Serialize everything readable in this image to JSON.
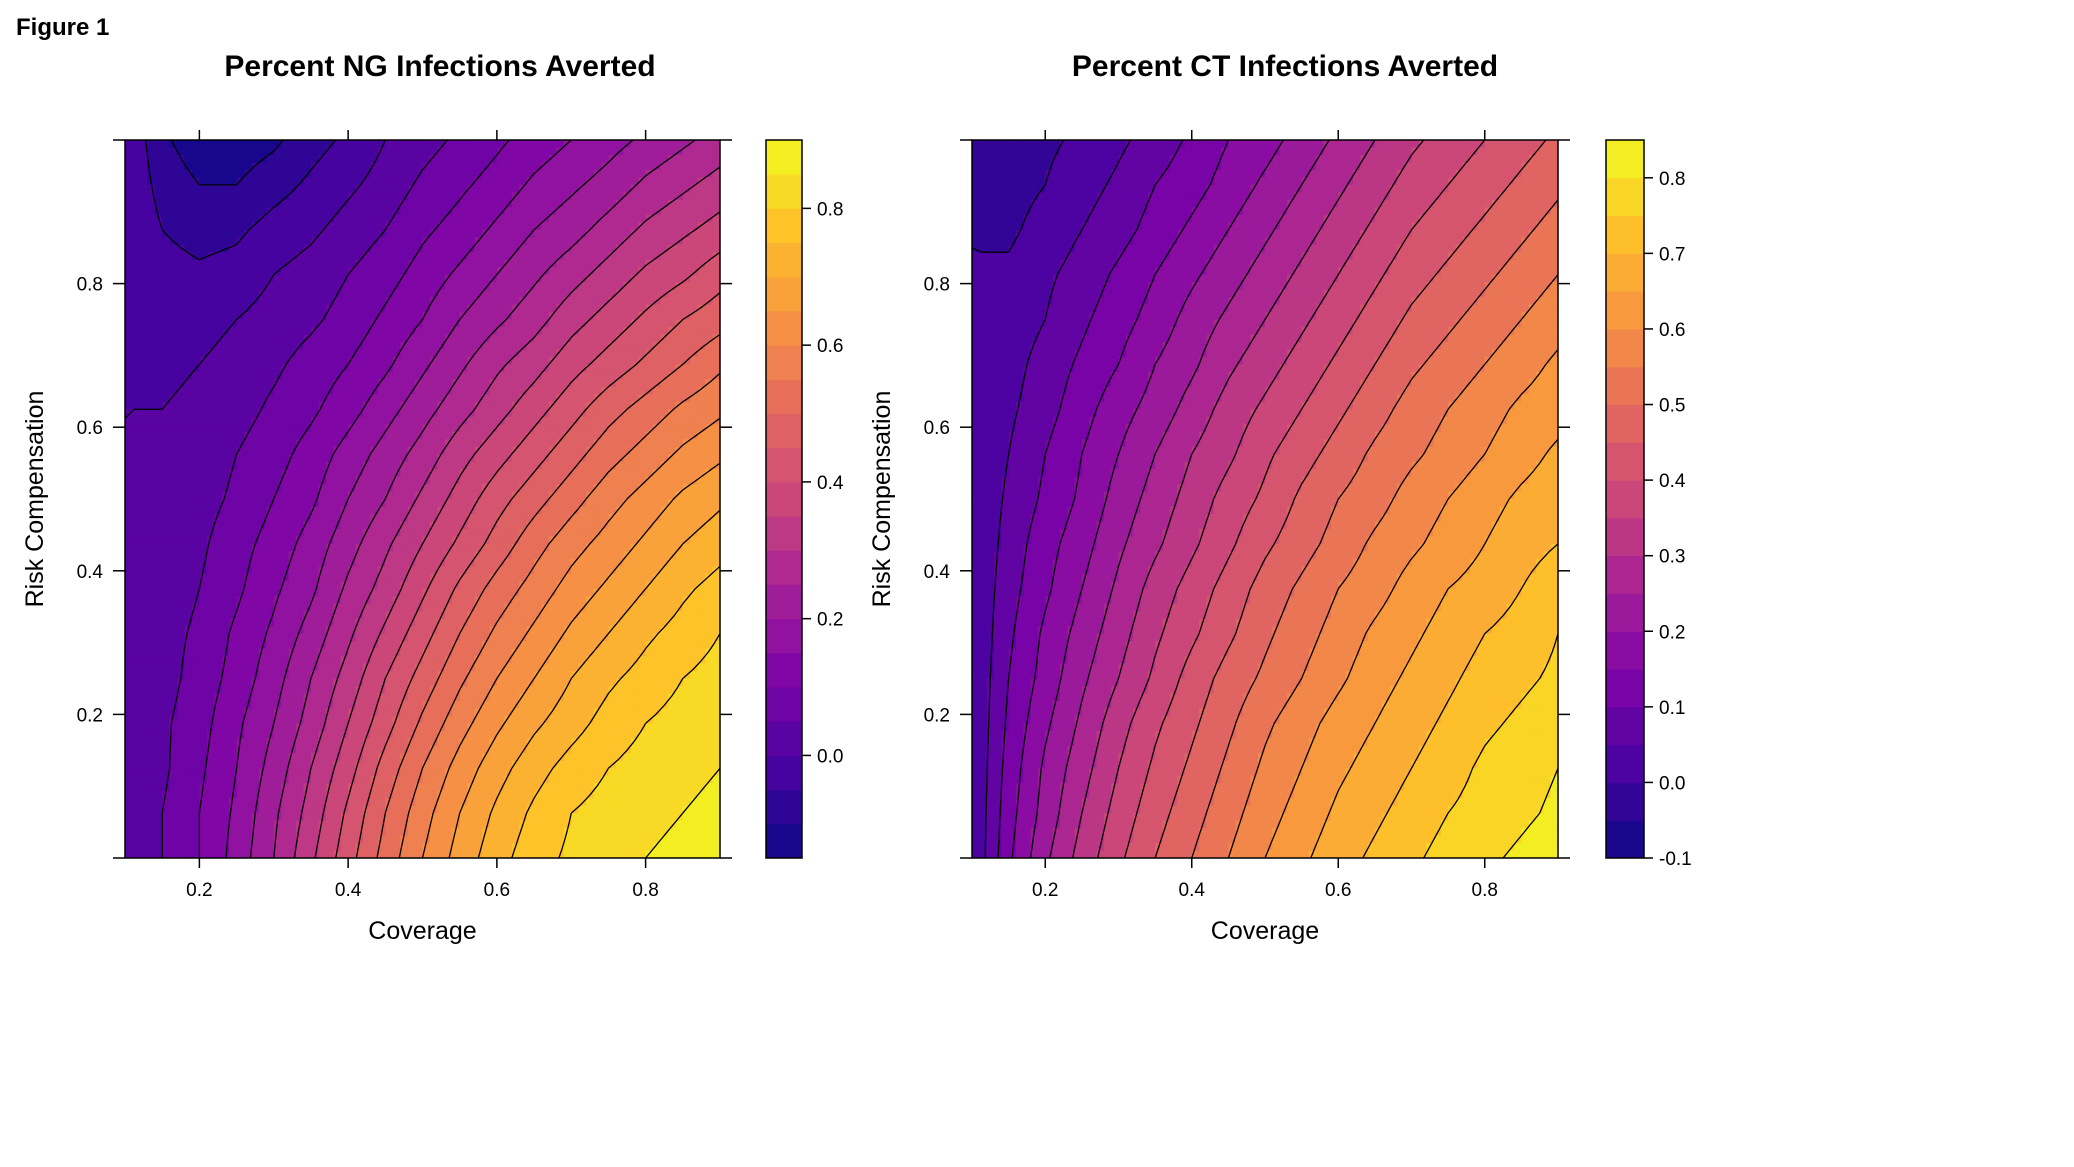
{
  "figure_label": "Figure 1",
  "chart_data": [
    {
      "type": "heatmap",
      "subtype": "filled-contour",
      "title": "Percent NG Infections Averted",
      "xlabel": "Coverage",
      "ylabel": "Risk Compensation",
      "xlim": [
        0.1,
        0.9
      ],
      "ylim": [
        0.0,
        1.0
      ],
      "x_ticks": [
        0.2,
        0.4,
        0.6,
        0.8
      ],
      "y_ticks": [
        0.2,
        0.4,
        0.6,
        0.8
      ],
      "x_tick_labels": [
        "0.2",
        "0.4",
        "0.6",
        "0.8"
      ],
      "y_tick_labels": [
        "0.2",
        "0.4",
        "0.6",
        "0.8"
      ],
      "colorbar": {
        "range": [
          -0.15,
          0.9
        ],
        "ticks": [
          0.0,
          0.2,
          0.4,
          0.6,
          0.8
        ],
        "tick_labels": [
          "0.0",
          "0.2",
          "0.4",
          "0.6",
          "0.8"
        ],
        "step": 0.05
      },
      "colormap": "plasma",
      "grid": [
        [
          0.0,
          0.05,
          0.1,
          0.17,
          0.25,
          0.34,
          0.43,
          0.52,
          0.6,
          0.67,
          0.73,
          0.78,
          0.81,
          0.83,
          0.85,
          0.86,
          0.87
        ],
        [
          0.0,
          0.05,
          0.1,
          0.16,
          0.24,
          0.32,
          0.41,
          0.5,
          0.58,
          0.65,
          0.71,
          0.76,
          0.8,
          0.82,
          0.84,
          0.85,
          0.86
        ],
        [
          0.0,
          0.04,
          0.09,
          0.15,
          0.22,
          0.3,
          0.38,
          0.47,
          0.55,
          0.62,
          0.68,
          0.73,
          0.77,
          0.8,
          0.82,
          0.84,
          0.85
        ],
        [
          0.0,
          0.04,
          0.08,
          0.14,
          0.2,
          0.27,
          0.35,
          0.43,
          0.51,
          0.58,
          0.64,
          0.69,
          0.73,
          0.77,
          0.8,
          0.82,
          0.84
        ],
        [
          0.0,
          0.03,
          0.07,
          0.12,
          0.18,
          0.25,
          0.32,
          0.4,
          0.47,
          0.54,
          0.6,
          0.65,
          0.7,
          0.74,
          0.77,
          0.8,
          0.82
        ],
        [
          0.0,
          0.03,
          0.06,
          0.11,
          0.16,
          0.22,
          0.29,
          0.36,
          0.43,
          0.5,
          0.56,
          0.61,
          0.66,
          0.7,
          0.74,
          0.77,
          0.8
        ],
        [
          0.0,
          0.02,
          0.05,
          0.09,
          0.14,
          0.19,
          0.26,
          0.32,
          0.39,
          0.46,
          0.52,
          0.57,
          0.62,
          0.66,
          0.7,
          0.74,
          0.77
        ],
        [
          0.0,
          0.02,
          0.04,
          0.08,
          0.12,
          0.17,
          0.23,
          0.29,
          0.35,
          0.41,
          0.47,
          0.53,
          0.58,
          0.62,
          0.66,
          0.7,
          0.73
        ],
        [
          0.0,
          0.01,
          0.03,
          0.06,
          0.1,
          0.14,
          0.2,
          0.25,
          0.31,
          0.37,
          0.43,
          0.48,
          0.53,
          0.58,
          0.62,
          0.66,
          0.69
        ],
        [
          0.0,
          0.01,
          0.02,
          0.05,
          0.08,
          0.12,
          0.17,
          0.22,
          0.27,
          0.33,
          0.38,
          0.43,
          0.48,
          0.53,
          0.57,
          0.61,
          0.64
        ],
        [
          0.0,
          0.0,
          0.01,
          0.03,
          0.06,
          0.09,
          0.13,
          0.18,
          0.23,
          0.28,
          0.33,
          0.38,
          0.43,
          0.48,
          0.52,
          0.56,
          0.59
        ],
        [
          0.0,
          -0.01,
          0.0,
          0.02,
          0.04,
          0.07,
          0.1,
          0.14,
          0.19,
          0.24,
          0.29,
          0.33,
          0.38,
          0.42,
          0.46,
          0.5,
          0.54
        ],
        [
          0.0,
          -0.02,
          -0.02,
          0.0,
          0.02,
          0.04,
          0.07,
          0.11,
          0.15,
          0.2,
          0.24,
          0.28,
          0.33,
          0.37,
          0.41,
          0.45,
          0.48
        ],
        [
          0.0,
          -0.03,
          -0.04,
          -0.03,
          0.0,
          0.02,
          0.05,
          0.08,
          0.12,
          0.16,
          0.2,
          0.24,
          0.28,
          0.32,
          0.36,
          0.39,
          0.43
        ],
        [
          0.0,
          -0.05,
          -0.07,
          -0.06,
          -0.03,
          -0.01,
          0.02,
          0.05,
          0.09,
          0.12,
          0.16,
          0.2,
          0.23,
          0.27,
          0.31,
          0.34,
          0.37
        ],
        [
          0.0,
          -0.07,
          -0.1,
          -0.1,
          -0.07,
          -0.04,
          -0.01,
          0.02,
          0.06,
          0.09,
          0.12,
          0.16,
          0.19,
          0.22,
          0.26,
          0.29,
          0.32
        ],
        [
          0.0,
          -0.09,
          -0.13,
          -0.13,
          -0.11,
          -0.07,
          -0.04,
          0.0,
          0.03,
          0.06,
          0.09,
          0.12,
          0.15,
          0.18,
          0.21,
          0.24,
          0.27
        ]
      ]
    },
    {
      "type": "heatmap",
      "subtype": "filled-contour",
      "title": "Percent CT Infections Averted",
      "xlabel": "Coverage",
      "ylabel": "Risk Compensation",
      "xlim": [
        0.1,
        0.9
      ],
      "ylim": [
        0.0,
        1.0
      ],
      "x_ticks": [
        0.2,
        0.4,
        0.6,
        0.8
      ],
      "y_ticks": [
        0.2,
        0.4,
        0.6,
        0.8
      ],
      "x_tick_labels": [
        "0.2",
        "0.4",
        "0.6",
        "0.8"
      ],
      "y_tick_labels": [
        "0.2",
        "0.4",
        "0.6",
        "0.8"
      ],
      "colorbar": {
        "range": [
          -0.1,
          0.85
        ],
        "ticks": [
          -0.1,
          0.0,
          0.1,
          0.2,
          0.3,
          0.4,
          0.5,
          0.6,
          0.7,
          0.8
        ],
        "tick_labels": [
          "-0.1",
          "0.0",
          "0.1",
          "0.2",
          "0.3",
          "0.4",
          "0.5",
          "0.6",
          "0.7",
          "0.8"
        ],
        "step": 0.05
      },
      "colormap": "plasma",
      "grid": [
        [
          0.0,
          0.14,
          0.24,
          0.32,
          0.39,
          0.45,
          0.5,
          0.55,
          0.6,
          0.64,
          0.68,
          0.71,
          0.74,
          0.77,
          0.79,
          0.81,
          0.83
        ],
        [
          0.0,
          0.13,
          0.22,
          0.3,
          0.37,
          0.43,
          0.48,
          0.53,
          0.58,
          0.62,
          0.66,
          0.69,
          0.72,
          0.75,
          0.77,
          0.79,
          0.81
        ],
        [
          0.0,
          0.12,
          0.21,
          0.28,
          0.35,
          0.41,
          0.46,
          0.51,
          0.56,
          0.6,
          0.64,
          0.67,
          0.7,
          0.73,
          0.76,
          0.78,
          0.8
        ],
        [
          0.0,
          0.11,
          0.19,
          0.26,
          0.33,
          0.39,
          0.44,
          0.49,
          0.54,
          0.58,
          0.62,
          0.65,
          0.68,
          0.71,
          0.74,
          0.76,
          0.78
        ],
        [
          0.0,
          0.1,
          0.17,
          0.24,
          0.3,
          0.36,
          0.42,
          0.47,
          0.51,
          0.55,
          0.59,
          0.63,
          0.66,
          0.69,
          0.72,
          0.74,
          0.76
        ],
        [
          0.0,
          0.09,
          0.16,
          0.22,
          0.28,
          0.34,
          0.39,
          0.44,
          0.49,
          0.53,
          0.57,
          0.61,
          0.64,
          0.67,
          0.7,
          0.72,
          0.75
        ],
        [
          0.0,
          0.08,
          0.14,
          0.2,
          0.26,
          0.32,
          0.37,
          0.42,
          0.47,
          0.51,
          0.55,
          0.58,
          0.62,
          0.65,
          0.67,
          0.7,
          0.73
        ],
        [
          0.0,
          0.07,
          0.13,
          0.18,
          0.24,
          0.29,
          0.34,
          0.39,
          0.44,
          0.48,
          0.52,
          0.56,
          0.59,
          0.62,
          0.65,
          0.68,
          0.7
        ],
        [
          0.0,
          0.06,
          0.11,
          0.16,
          0.22,
          0.27,
          0.32,
          0.37,
          0.41,
          0.46,
          0.5,
          0.53,
          0.57,
          0.6,
          0.63,
          0.66,
          0.68
        ],
        [
          0.0,
          0.05,
          0.1,
          0.15,
          0.2,
          0.25,
          0.3,
          0.34,
          0.39,
          0.43,
          0.47,
          0.51,
          0.54,
          0.57,
          0.6,
          0.63,
          0.66
        ],
        [
          0.0,
          0.04,
          0.08,
          0.13,
          0.18,
          0.22,
          0.27,
          0.32,
          0.36,
          0.4,
          0.44,
          0.48,
          0.52,
          0.55,
          0.58,
          0.61,
          0.63
        ],
        [
          0.0,
          0.03,
          0.07,
          0.11,
          0.15,
          0.2,
          0.24,
          0.29,
          0.33,
          0.37,
          0.41,
          0.45,
          0.49,
          0.52,
          0.55,
          0.58,
          0.61
        ],
        [
          0.0,
          0.02,
          0.05,
          0.09,
          0.13,
          0.17,
          0.22,
          0.26,
          0.3,
          0.34,
          0.38,
          0.42,
          0.46,
          0.49,
          0.52,
          0.55,
          0.58
        ],
        [
          0.0,
          0.01,
          0.04,
          0.07,
          0.11,
          0.15,
          0.19,
          0.23,
          0.27,
          0.31,
          0.35,
          0.39,
          0.43,
          0.46,
          0.49,
          0.52,
          0.55
        ],
        [
          0.0,
          -0.01,
          0.02,
          0.05,
          0.08,
          0.12,
          0.16,
          0.2,
          0.24,
          0.28,
          0.32,
          0.36,
          0.4,
          0.43,
          0.46,
          0.49,
          0.52
        ],
        [
          0.0,
          -0.02,
          0.0,
          0.03,
          0.06,
          0.1,
          0.13,
          0.17,
          0.21,
          0.25,
          0.29,
          0.33,
          0.37,
          0.4,
          0.43,
          0.46,
          0.49
        ],
        [
          0.0,
          -0.03,
          -0.01,
          0.01,
          0.04,
          0.07,
          0.11,
          0.15,
          0.18,
          0.22,
          0.26,
          0.3,
          0.34,
          0.37,
          0.4,
          0.43,
          0.46
        ]
      ]
    }
  ]
}
